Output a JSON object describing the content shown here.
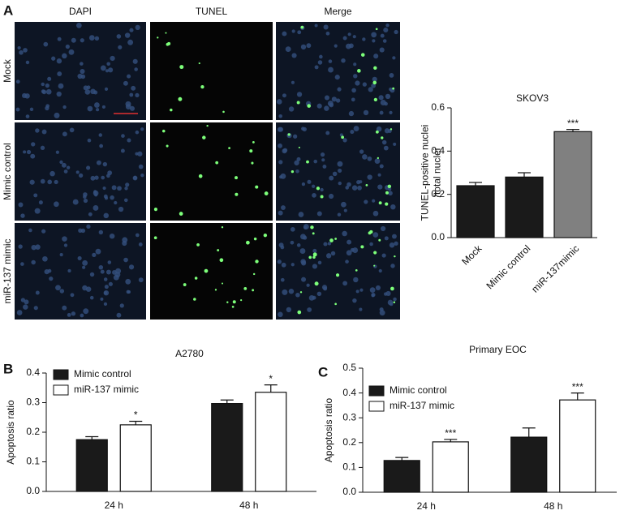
{
  "panel_labels": [
    "A",
    "B",
    "C"
  ],
  "image_grid": {
    "columns": [
      "DAPI",
      "TUNEL",
      "Merge"
    ],
    "rows": [
      "Mock",
      "Mimic control",
      "miR-137 mimic"
    ]
  },
  "chart_data": [
    {
      "type": "bar",
      "title": "SKOV3",
      "ylabel": [
        "TUNEL-positive nuclei",
        "/total nuclei"
      ],
      "categories": [
        "Mock",
        "Mimic control",
        "miR-137mimic"
      ],
      "values": [
        0.24,
        0.28,
        0.49
      ],
      "errors": [
        0.015,
        0.02,
        0.01
      ],
      "colors": [
        "#1a1a1a",
        "#1a1a1a",
        "#808080"
      ],
      "labels": [
        null,
        null,
        "***"
      ],
      "ylim": [
        0,
        0.6
      ],
      "yticks": [
        {
          "value": 0,
          "label": "0.0"
        },
        0.2,
        0.4,
        0.6
      ]
    },
    {
      "type": "bar",
      "title": "A2780",
      "ylabel": [
        "Apoptosis ratio"
      ],
      "categories": [
        "24 h",
        "48 h"
      ],
      "series": [
        {
          "name": "Mimic control",
          "color": "#1a1a1a",
          "values": [
            0.175,
            0.297
          ],
          "errors": [
            0.01,
            0.012
          ],
          "labels": [
            null,
            null
          ]
        },
        {
          "name": "miR-137 mimic",
          "color": "#ffffff",
          "values": [
            0.225,
            0.335
          ],
          "errors": [
            0.012,
            0.025
          ],
          "labels": [
            "*",
            "*"
          ]
        }
      ],
      "ylim": [
        0,
        0.4
      ],
      "yticks": [
        {
          "value": 0,
          "label": "0.0"
        },
        0.1,
        0.2,
        0.3,
        0.4
      ]
    },
    {
      "type": "bar",
      "title": "Primary EOC",
      "ylabel": [
        "Apoptosis ratio"
      ],
      "categories": [
        "24 h",
        "48 h"
      ],
      "series": [
        {
          "name": "Mimic control",
          "color": "#1a1a1a",
          "values": [
            0.128,
            0.222
          ],
          "errors": [
            0.012,
            0.037
          ],
          "labels": [
            null,
            null
          ]
        },
        {
          "name": "miR-137 mimic",
          "color": "#ffffff",
          "values": [
            0.203,
            0.372
          ],
          "errors": [
            0.01,
            0.028
          ],
          "labels": [
            "***",
            "***"
          ]
        }
      ],
      "ylim": [
        0,
        0.5
      ],
      "yticks": [
        {
          "value": 0,
          "label": "0.0"
        },
        0.1,
        0.2,
        0.3,
        0.4,
        0.5
      ]
    }
  ]
}
